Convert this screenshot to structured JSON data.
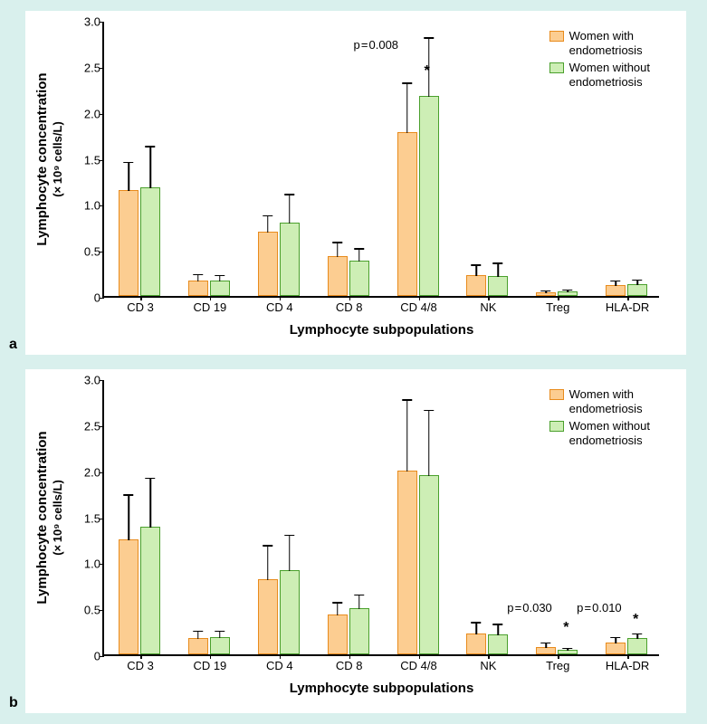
{
  "global": {
    "background_color": "#d9f0ed",
    "panel_bg": "#ffffff",
    "axis_color": "#000000",
    "font": "Arial",
    "legend": {
      "series1_label": "Women with endometriosis",
      "series1_color": "#fccd91",
      "series1_border": "#e88b1c",
      "series2_label": "Women without endometriosis",
      "series2_color": "#cdeeb5",
      "series2_border": "#4aa02c"
    },
    "ylabel_line1": "Lymphocyte concentration",
    "ylabel_line2": "(× 10⁹ cells/L)",
    "xlabel": "Lymphocyte subpopulations",
    "ylim": [
      0,
      3.0
    ],
    "ytick_step": 0.5,
    "yticks": [
      "0",
      "0.5",
      "1.0",
      "1.5",
      "2.0",
      "2.5",
      "3.0"
    ],
    "categories": [
      "CD 3",
      "CD 19",
      "CD 4",
      "CD 8",
      "CD 4/8",
      "NK",
      "Treg",
      "HLA-DR"
    ]
  },
  "panel_a": {
    "label": "a",
    "type": "bar",
    "series1_values": [
      1.15,
      0.17,
      0.7,
      0.43,
      1.78,
      0.23,
      0.04,
      0.12
    ],
    "series1_err": [
      0.32,
      0.08,
      0.19,
      0.17,
      0.55,
      0.12,
      0.03,
      0.06
    ],
    "series2_values": [
      1.18,
      0.17,
      0.8,
      0.38,
      2.17,
      0.22,
      0.05,
      0.13
    ],
    "series2_err": [
      0.46,
      0.07,
      0.32,
      0.15,
      0.65,
      0.15,
      0.03,
      0.06
    ],
    "annotations": [
      {
        "text": "p = 0.008",
        "cat_index": 4,
        "dx": -42,
        "y": 2.82
      }
    ],
    "stars": [
      {
        "cat_index": 4,
        "series": 2,
        "y": 2.45
      }
    ]
  },
  "panel_b": {
    "label": "b",
    "type": "bar",
    "series1_values": [
      1.25,
      0.18,
      0.82,
      0.43,
      2.0,
      0.23,
      0.08,
      0.13
    ],
    "series1_err": [
      0.5,
      0.09,
      0.38,
      0.15,
      0.78,
      0.13,
      0.06,
      0.07
    ],
    "series2_values": [
      1.39,
      0.19,
      0.91,
      0.5,
      1.95,
      0.22,
      0.05,
      0.18
    ],
    "series2_err": [
      0.54,
      0.08,
      0.4,
      0.16,
      0.72,
      0.12,
      0.03,
      0.06
    ],
    "annotations": [
      {
        "text": "p = 0.030",
        "cat_index": 6,
        "dx": -26,
        "y": 0.6
      },
      {
        "text": "p = 0.010",
        "cat_index": 7,
        "dx": -26,
        "y": 0.6
      }
    ],
    "stars": [
      {
        "cat_index": 6,
        "series": 2,
        "y": 0.3
      },
      {
        "cat_index": 7,
        "series": 2,
        "y": 0.38
      }
    ]
  }
}
